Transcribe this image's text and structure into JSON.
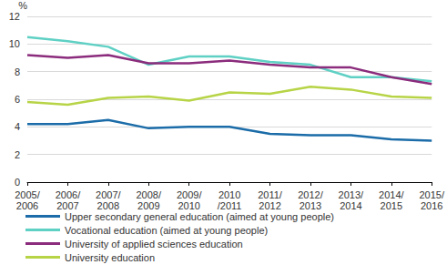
{
  "chart_data": {
    "type": "line",
    "y_label": "%",
    "categories": [
      "2005/\n2006",
      "2006/\n2007",
      "2007/\n2008",
      "2008/\n2009",
      "2009/\n2010",
      "2010\n/2011",
      "2011/\n2012",
      "2012/\n2013",
      "2013/\n2014",
      "2014/\n2015",
      "2015/\n2016"
    ],
    "series": [
      {
        "name": "Upper secondary general education (aimed at young people)",
        "color": "#1b6ca8",
        "values": [
          4.2,
          4.2,
          4.5,
          3.9,
          4.0,
          4.0,
          3.5,
          3.4,
          3.4,
          3.1,
          3.0
        ]
      },
      {
        "name": "Vocational education (aimed at young people)",
        "color": "#5fd0c4",
        "values": [
          10.5,
          10.2,
          9.8,
          8.5,
          9.1,
          9.1,
          8.7,
          8.5,
          7.6,
          7.6,
          7.3
        ]
      },
      {
        "name": "University of applied sciences education",
        "color": "#8b2c7c",
        "values": [
          9.2,
          9.0,
          9.2,
          8.6,
          8.6,
          8.8,
          8.5,
          8.3,
          8.3,
          7.6,
          7.1
        ]
      },
      {
        "name": "University education",
        "color": "#b7d447",
        "values": [
          5.8,
          5.6,
          6.1,
          6.2,
          5.9,
          6.5,
          6.4,
          6.9,
          6.7,
          6.2,
          6.1
        ]
      }
    ],
    "ylim": [
      0,
      12
    ],
    "yticks": [
      0,
      2,
      4,
      6,
      8,
      10,
      12
    ],
    "grid": true,
    "legend": "bottom"
  }
}
